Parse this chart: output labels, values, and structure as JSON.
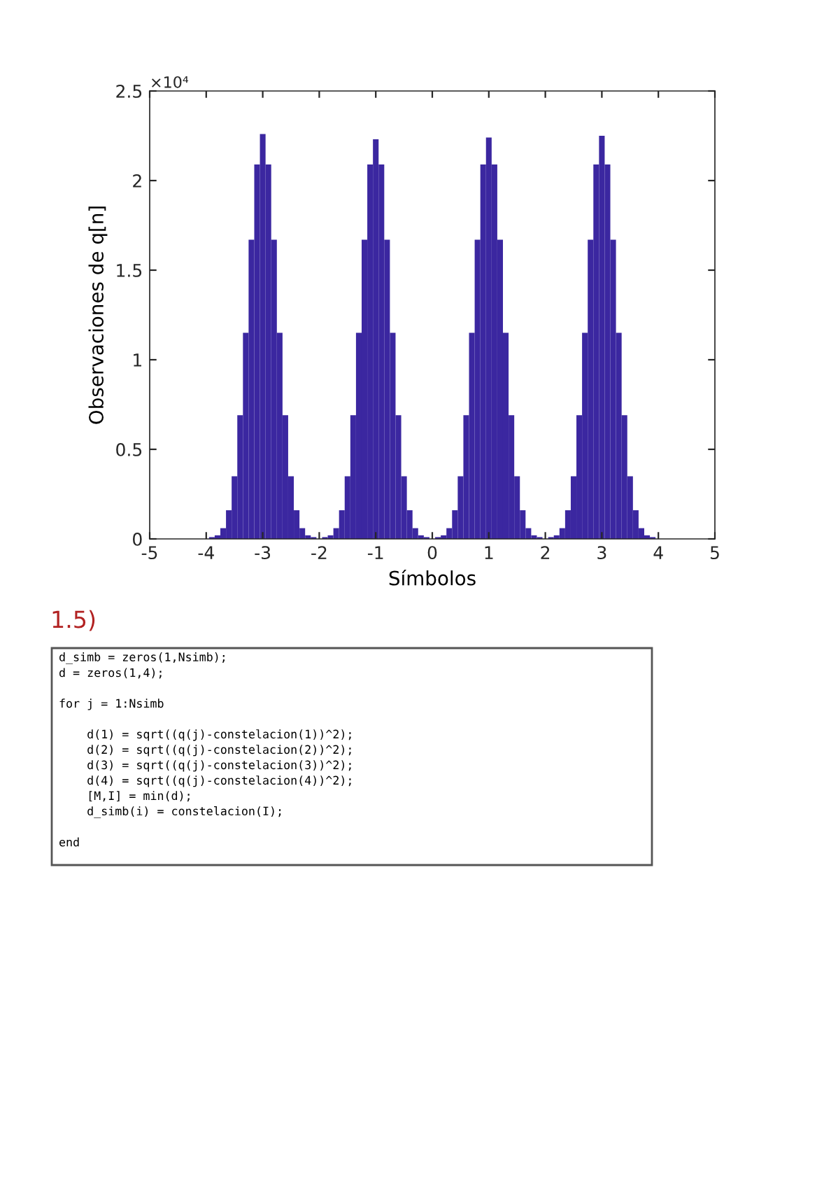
{
  "chart_data": {
    "type": "histogram",
    "xlabel": "Símbolos",
    "ylabel": "Observaciones de q[n]",
    "bins": [
      -4.05,
      -3.95,
      -3.85,
      -3.75,
      -3.65,
      -3.55,
      -3.45,
      -3.35,
      -3.25,
      -3.15,
      -3.05,
      -2.95,
      -2.85,
      -2.75,
      -2.65,
      -2.55,
      -2.45,
      -2.35,
      -2.25,
      -2.15,
      -2.05,
      -1.95,
      -1.85,
      -1.75,
      -1.65,
      -1.55,
      -1.45,
      -1.35,
      -1.25,
      -1.15,
      -1.05,
      -0.95,
      -0.85,
      -0.75,
      -0.65,
      -0.55,
      -0.45,
      -0.35,
      -0.25,
      -0.15,
      -0.05,
      0.05,
      0.15,
      0.25,
      0.35,
      0.45,
      0.55,
      0.65,
      0.75,
      0.85,
      0.95,
      1.05,
      1.15,
      1.25,
      1.35,
      1.45,
      1.55,
      1.65,
      1.75,
      1.85,
      1.95,
      2.05,
      2.15,
      2.25,
      2.35,
      2.45,
      2.55,
      2.65,
      2.75,
      2.85,
      2.95,
      3.05,
      3.15,
      3.25,
      3.35,
      3.45,
      3.55,
      3.65,
      3.75,
      3.85,
      3.95,
      4.05
    ],
    "values": [
      0,
      0.01,
      0.02,
      0.06,
      0.16,
      0.35,
      0.69,
      1.15,
      1.67,
      2.09,
      2.26,
      2.09,
      1.67,
      1.15,
      0.69,
      0.35,
      0.16,
      0.06,
      0.02,
      0.01,
      0,
      0.01,
      0.02,
      0.06,
      0.16,
      0.35,
      0.69,
      1.15,
      1.67,
      2.09,
      2.23,
      2.09,
      1.67,
      1.15,
      0.69,
      0.35,
      0.16,
      0.06,
      0.02,
      0.01,
      0,
      0.01,
      0.02,
      0.06,
      0.16,
      0.35,
      0.69,
      1.15,
      1.67,
      2.09,
      2.24,
      2.09,
      1.67,
      1.15,
      0.69,
      0.35,
      0.16,
      0.06,
      0.02,
      0.01,
      0,
      0.01,
      0.02,
      0.06,
      0.16,
      0.35,
      0.69,
      1.15,
      1.67,
      2.09,
      2.25,
      2.09,
      1.67,
      1.15,
      0.69,
      0.35,
      0.16,
      0.06,
      0.02,
      0.01,
      0
    ],
    "color": "#3b27a0",
    "xlim": [
      -5,
      5
    ],
    "xticks": [
      -5,
      -4,
      -3,
      -2,
      -1,
      0,
      1,
      2,
      3,
      4,
      5
    ],
    "ylim": [
      0,
      2.5
    ],
    "yticks": [
      0,
      0.5,
      1,
      1.5,
      2,
      2.5
    ],
    "grid": false,
    "annotations": [
      "×10⁴",
      "1.5)",
      "d_simb = zeros(1,Nsimb);\nd = zeros(1,4);\n\nfor j = 1:Nsimb\n\n    d(1) = sqrt((q(j)-constelacion(1))^2);\n    d(2) = sqrt((q(j)-constelacion(2))^2);\n    d(3) = sqrt((q(j)-constelacion(3))^2);\n    d(4) = sqrt((q(j)-constelacion(4))^2);\n    [M,I] = min(d);\n    d_simb(i) = constelacion(I);\n\nend"
    ]
  }
}
